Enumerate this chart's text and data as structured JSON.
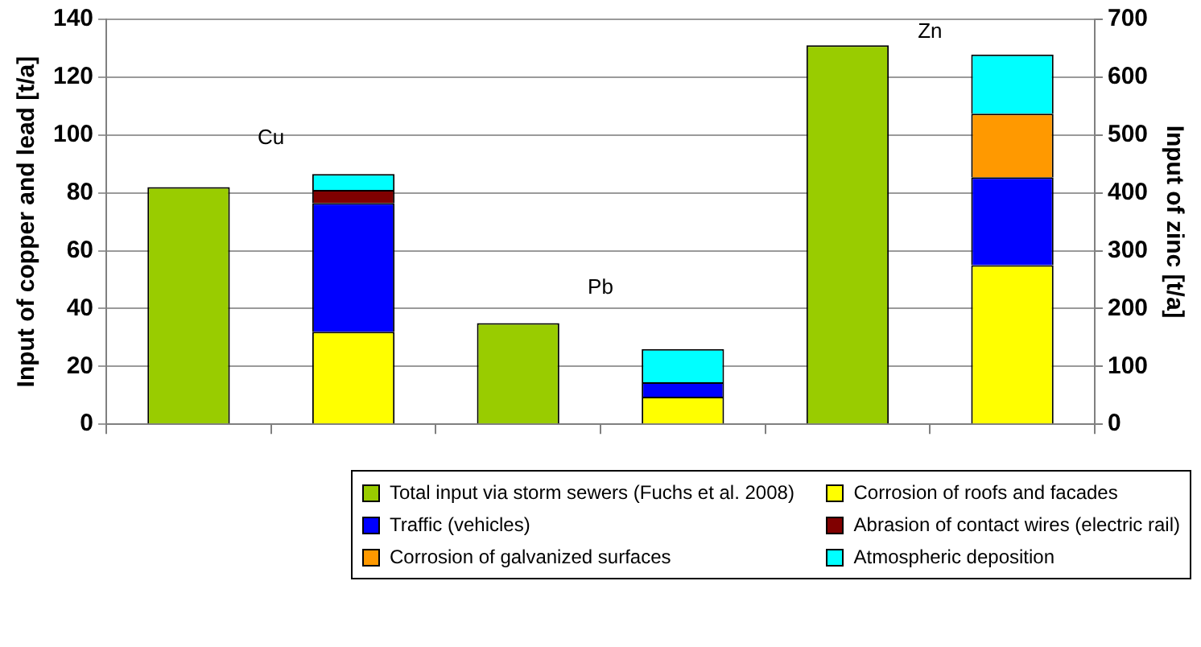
{
  "chart_data": {
    "type": "bar",
    "stacked": true,
    "categories": [
      null,
      null,
      null,
      null,
      null,
      null
    ],
    "ylabel": "Input of copper and lead [t/a]",
    "y2label": "Input of zinc [t/a]",
    "ylim": [
      0,
      140
    ],
    "yticks": [
      0,
      20,
      40,
      60,
      80,
      100,
      120,
      140
    ],
    "y2lim": [
      0,
      700
    ],
    "y2ticks": [
      0,
      100,
      200,
      300,
      400,
      500,
      600,
      700
    ],
    "grid": "y",
    "legend": "bottom",
    "annotations": [
      "Cu",
      "Pb",
      "Zn"
    ],
    "series": [
      {
        "name": "Total input via storm sewers (Fuchs et al. 2008)",
        "color": "#99cc00",
        "values": [
          82,
          null,
          35,
          null,
          null,
          null
        ]
      },
      {
        "name": "Corrosion of roofs and facades",
        "color": "#ffff00",
        "values": [
          null,
          32,
          null,
          9.5,
          null,
          null
        ]
      },
      {
        "name": "Traffic (vehicles)",
        "color": "#0000ff",
        "values": [
          null,
          44.5,
          null,
          5,
          null,
          null
        ]
      },
      {
        "name": "Abrasion of contact wires (electric rail)",
        "color": "#800000",
        "values": [
          null,
          4.5,
          null,
          null,
          null,
          null
        ]
      },
      {
        "name": "Corrosion of galvanized surfaces",
        "color": "#ff9900",
        "values": [
          null,
          null,
          null,
          null,
          null,
          null
        ]
      },
      {
        "name": "Atmospheric deposition",
        "color": "#00ffff",
        "values": [
          null,
          5.5,
          null,
          11.5,
          null,
          null
        ]
      },
      {
        "color": "#99cc00",
        "axis": "y2",
        "values": [
          null,
          null,
          null,
          null,
          655,
          null
        ]
      },
      {
        "color": "#ffff00",
        "axis": "y2",
        "values": [
          null,
          null,
          null,
          null,
          null,
          275
        ]
      },
      {
        "color": "#0000ff",
        "axis": "y2",
        "values": [
          null,
          null,
          null,
          null,
          null,
          152
        ]
      },
      {
        "color": "#ff9900",
        "axis": "y2",
        "values": [
          null,
          null,
          null,
          null,
          null,
          110
        ]
      },
      {
        "color": "#00ffff",
        "axis": "y2",
        "values": [
          null,
          null,
          null,
          null,
          null,
          102
        ]
      }
    ]
  }
}
